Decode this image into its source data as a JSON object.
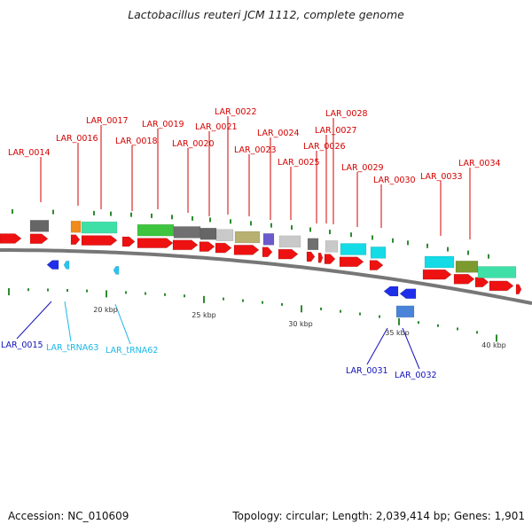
{
  "title": "Lactobacillus reuteri JCM 1112, complete genome",
  "footer": {
    "accession": "Accession: NC_010609",
    "stats": "Topology: circular; Length: 2,039,414 bp; Genes: 1,901"
  },
  "colors": {
    "top_label": "#d40000",
    "bottom_label": "#1111bb",
    "trna_label": "#1ab8e8",
    "axis": "#777777",
    "tick": "#2e8b2e"
  },
  "scale_labels": [
    "20 kbp",
    "25 kbp",
    "30 kbp",
    "35 kbp",
    "40 kbp"
  ],
  "top_labels": [
    "LAR_0014",
    "LAR_0016",
    "LAR_0017",
    "LAR_0018",
    "LAR_0019",
    "LAR_0020",
    "LAR_0021",
    "LAR_0022",
    "LAR_0023",
    "LAR_0024",
    "LAR_0025",
    "LAR_0026",
    "LAR_0027",
    "LAR_0028",
    "LAR_0029",
    "LAR_0030",
    "LAR_0033",
    "LAR_0034"
  ],
  "bottom_labels": [
    "LAR_0015",
    "LAR_tRNA63",
    "LAR_tRNA62",
    "LAR_0031",
    "LAR_0032"
  ]
}
